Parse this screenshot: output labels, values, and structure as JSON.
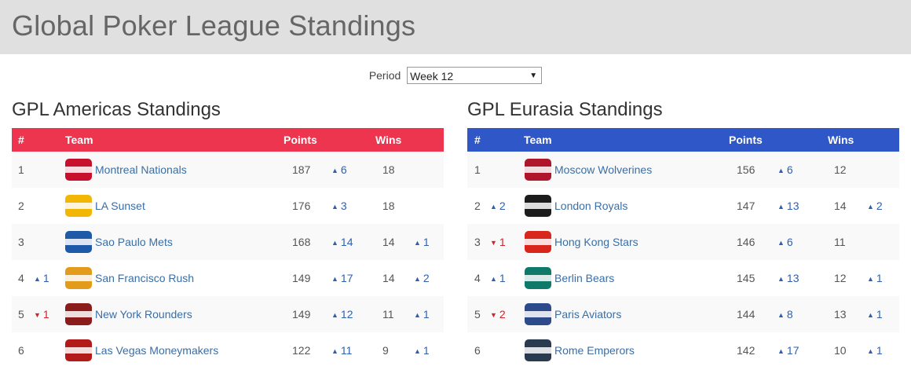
{
  "page": {
    "title": "Global Poker League Standings"
  },
  "period": {
    "label": "Period",
    "selected": "Week 12"
  },
  "headers": {
    "rank": "#",
    "team": "Team",
    "points": "Points",
    "wins": "Wins"
  },
  "americas": {
    "title": "GPL Americas Standings",
    "header_color": "#ee3550",
    "rows": [
      {
        "rank": "1",
        "rank_change": "",
        "rank_dir": "",
        "team": "Montreal Nationals",
        "logo_color": "#c8102e",
        "points": "187",
        "points_change": "6",
        "wins": "18",
        "wins_change": ""
      },
      {
        "rank": "2",
        "rank_change": "",
        "rank_dir": "",
        "team": "LA Sunset",
        "logo_color": "#f2b705",
        "points": "176",
        "points_change": "3",
        "wins": "18",
        "wins_change": ""
      },
      {
        "rank": "3",
        "rank_change": "",
        "rank_dir": "",
        "team": "Sao Paulo Mets",
        "logo_color": "#1e5aa8",
        "points": "168",
        "points_change": "14",
        "wins": "14",
        "wins_change": "1"
      },
      {
        "rank": "4",
        "rank_change": "1",
        "rank_dir": "up",
        "team": "San Francisco Rush",
        "logo_color": "#e39b1b",
        "points": "149",
        "points_change": "17",
        "wins": "14",
        "wins_change": "2"
      },
      {
        "rank": "5",
        "rank_change": "1",
        "rank_dir": "down",
        "team": "New York Rounders",
        "logo_color": "#8a1c1c",
        "points": "149",
        "points_change": "12",
        "wins": "11",
        "wins_change": "1"
      },
      {
        "rank": "6",
        "rank_change": "",
        "rank_dir": "",
        "team": "Las Vegas Moneymakers",
        "logo_color": "#b31b1b",
        "points": "122",
        "points_change": "11",
        "wins": "9",
        "wins_change": "1"
      }
    ]
  },
  "eurasia": {
    "title": "GPL Eurasia Standings",
    "header_color": "#2f57c8",
    "rows": [
      {
        "rank": "1",
        "rank_change": "",
        "rank_dir": "",
        "team": "Moscow Wolverines",
        "logo_color": "#b0162b",
        "points": "156",
        "points_change": "6",
        "wins": "12",
        "wins_change": ""
      },
      {
        "rank": "2",
        "rank_change": "2",
        "rank_dir": "up",
        "team": "London Royals",
        "logo_color": "#1c1c1c",
        "points": "147",
        "points_change": "13",
        "wins": "14",
        "wins_change": "2"
      },
      {
        "rank": "3",
        "rank_change": "1",
        "rank_dir": "down",
        "team": "Hong Kong Stars",
        "logo_color": "#d8261c",
        "points": "146",
        "points_change": "6",
        "wins": "11",
        "wins_change": ""
      },
      {
        "rank": "4",
        "rank_change": "1",
        "rank_dir": "up",
        "team": "Berlin Bears",
        "logo_color": "#0f7a6a",
        "points": "145",
        "points_change": "13",
        "wins": "12",
        "wins_change": "1"
      },
      {
        "rank": "5",
        "rank_change": "2",
        "rank_dir": "down",
        "team": "Paris Aviators",
        "logo_color": "#2d4a8a",
        "points": "144",
        "points_change": "8",
        "wins": "13",
        "wins_change": "1"
      },
      {
        "rank": "6",
        "rank_change": "",
        "rank_dir": "",
        "team": "Rome Emperors",
        "logo_color": "#2b3b4f",
        "points": "142",
        "points_change": "17",
        "wins": "10",
        "wins_change": "1"
      }
    ]
  },
  "icons": {
    "up": "triangle-up-icon",
    "down": "triangle-down-icon",
    "dropdown": "chevron-down-icon"
  },
  "colors": {
    "up": "#2f5fb0",
    "down": "#d0232b",
    "link": "#3a6ea5"
  }
}
